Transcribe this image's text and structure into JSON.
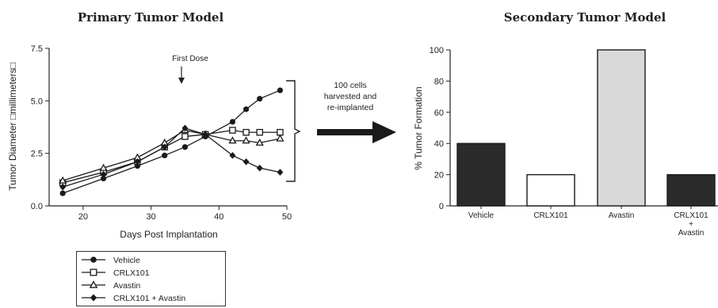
{
  "chart_data": [
    {
      "type": "line",
      "title": "Primary Tumor Model",
      "xlabel": "Days Post Implantation",
      "ylabel": "Tumor Diameter □millimeters□",
      "xlim": [
        15,
        50
      ],
      "ylim": [
        0,
        7.5
      ],
      "xticks": [
        20,
        30,
        40,
        50
      ],
      "yticks": [
        0.0,
        2.5,
        5.0,
        7.5
      ],
      "ytick_labels": [
        "0.0",
        "2.5",
        "5.0",
        "7.5"
      ],
      "annotation": {
        "text": "First Dose",
        "x": 35
      },
      "legend_position": "bottom-left",
      "series": [
        {
          "name": "Vehicle",
          "marker": "circle",
          "x": [
            17,
            23,
            28,
            32,
            35,
            38,
            42,
            44,
            46,
            49
          ],
          "y": [
            0.6,
            1.3,
            1.9,
            2.4,
            2.8,
            3.3,
            4.0,
            4.6,
            5.1,
            5.5
          ]
        },
        {
          "name": "CRLX101",
          "marker": "square-open",
          "x": [
            17,
            23,
            28,
            32,
            35,
            38,
            42,
            44,
            46,
            49
          ],
          "y": [
            1.1,
            1.6,
            2.1,
            2.8,
            3.3,
            3.4,
            3.6,
            3.5,
            3.5,
            3.5
          ]
        },
        {
          "name": "Avastin",
          "marker": "triangle-open",
          "x": [
            17,
            23,
            28,
            32,
            35,
            38,
            42,
            44,
            46,
            49
          ],
          "y": [
            1.2,
            1.8,
            2.3,
            3.0,
            3.6,
            3.4,
            3.1,
            3.1,
            3.0,
            3.2
          ]
        },
        {
          "name": "CRLX101 + Avastin",
          "marker": "diamond",
          "x": [
            17,
            23,
            28,
            32,
            35,
            38,
            42,
            44,
            46,
            49
          ],
          "y": [
            0.9,
            1.5,
            2.1,
            2.8,
            3.7,
            3.4,
            2.4,
            2.1,
            1.8,
            1.6
          ]
        }
      ]
    },
    {
      "type": "bar",
      "title": "Secondary Tumor Model",
      "ylabel": "% Tumor Formation",
      "ylim": [
        0,
        100
      ],
      "yticks": [
        0,
        20,
        40,
        60,
        80,
        100
      ],
      "categories": [
        "Vehicle",
        "CRLX101",
        "Avastin",
        "CRLX101\n+\nAvastin"
      ],
      "values": [
        40,
        20,
        100,
        20
      ],
      "colors": [
        "#2b2b2b",
        "#ffffff",
        "#d9d9d9",
        "#2b2b2b"
      ]
    }
  ],
  "arrow_note": [
    "100 cells",
    "harvested and",
    "re-implanted"
  ]
}
